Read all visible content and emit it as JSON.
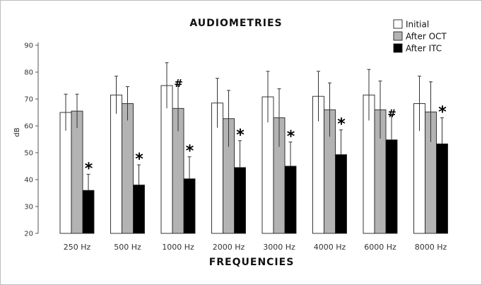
{
  "chart_data": {
    "type": "bar",
    "title": "AUDIOMETRIES",
    "xlabel": "FREQUENCIES",
    "ylabel": "dB",
    "ylim": [
      20,
      90
    ],
    "yticks": [
      20,
      30,
      40,
      50,
      60,
      70,
      80,
      90
    ],
    "categories": [
      "250 Hz",
      "500 Hz",
      "1000 Hz",
      "2000 Hz",
      "3000 Hz",
      "4000 Hz",
      "6000 Hz",
      "8000 Hz"
    ],
    "legend_position": "top-right",
    "grid": false,
    "series": [
      {
        "name": "Initial",
        "color": "#ffffff",
        "values": [
          65,
          71.5,
          75,
          68.5,
          70.8,
          71,
          71.5,
          68.3
        ],
        "error": [
          6.8,
          7,
          8.5,
          9.2,
          9.5,
          9.3,
          9.5,
          10.2
        ],
        "markers": [
          "",
          "",
          "",
          "",
          "",
          "",
          "",
          ""
        ]
      },
      {
        "name": "After OCT",
        "color": "#b3b3b3",
        "values": [
          65.5,
          68.3,
          66.5,
          62.7,
          63,
          66,
          66,
          65.2
        ],
        "error": [
          6.3,
          6.3,
          8.5,
          10.5,
          10.8,
          10,
          10.7,
          11.2
        ],
        "markers": [
          "",
          "",
          "#",
          "",
          "",
          "",
          "",
          ""
        ]
      },
      {
        "name": "After ITC",
        "color": "#000000",
        "values": [
          36,
          38,
          40.3,
          44.5,
          45,
          49.3,
          54.8,
          53.3
        ],
        "error": [
          6,
          7.5,
          8.2,
          10,
          9,
          9.2,
          9,
          9.7
        ],
        "markers": [
          "*",
          "*",
          "*",
          "*",
          "*",
          "*",
          "#",
          "*"
        ]
      }
    ]
  }
}
